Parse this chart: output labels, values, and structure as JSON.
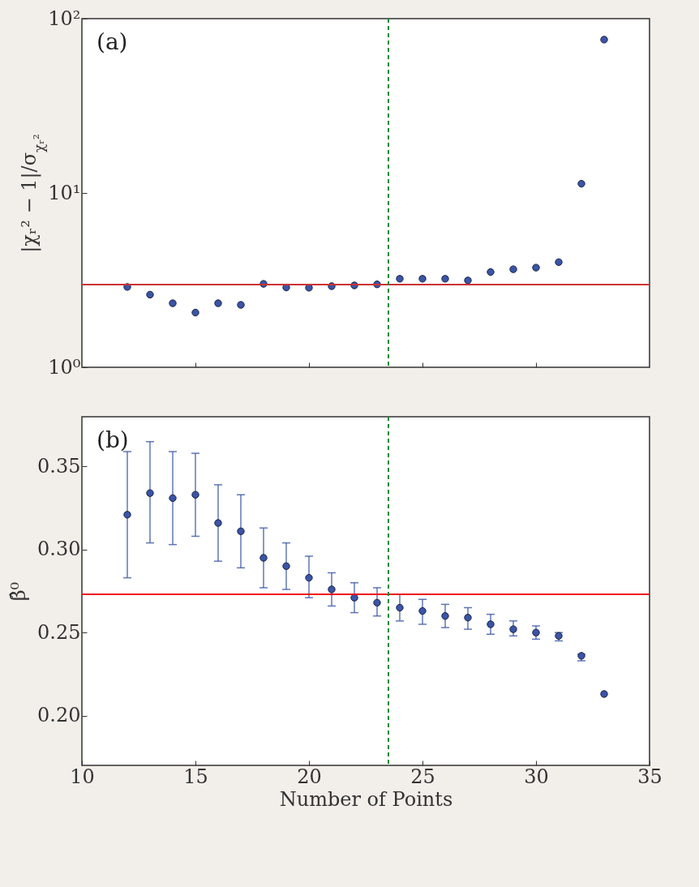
{
  "chart_data": [
    {
      "type": "scatter",
      "ylabel": "|χᵣ² − 1|/σ$_{χᵣ²}$",
      "x": [
        12,
        13,
        14,
        15,
        16,
        17,
        18,
        19,
        20,
        21,
        22,
        23,
        24,
        25,
        26,
        27,
        28,
        29,
        30,
        31,
        32,
        33
      ],
      "series": [
        {
          "color": "#3a55a8",
          "values": [
            2.89,
            2.61,
            2.33,
            2.06,
            2.33,
            2.28,
            3.01,
            2.87,
            2.86,
            2.92,
            2.95,
            2.99,
            3.22,
            3.22,
            3.22,
            3.15,
            3.52,
            3.65,
            3.73,
            4.01,
            11.3,
            75.8
          ]
        }
      ],
      "log": "y",
      "xlim": [
        10,
        35
      ],
      "xticks": [
        15,
        20,
        25,
        30
      ],
      "ylim": [
        1,
        100
      ],
      "yticks": [
        {
          "value": 1,
          "label": "10⁰"
        },
        {
          "value": 10,
          "label": "10¹"
        },
        {
          "value": 100,
          "label": "10²"
        }
      ],
      "tick_labels": "y",
      "marker": "circle",
      "ref_lines": [
        {
          "axis": "y",
          "value": 2.98,
          "color": "#cc3333"
        },
        {
          "axis": "x",
          "value": 23.5,
          "color": "#1a8a3a",
          "line_style": "dashed"
        }
      ],
      "annotations": [
        "(a)"
      ]
    },
    {
      "type": "scatter",
      "xlabel": "Number of Points",
      "ylabel": "β̂⁰",
      "x": [
        12,
        13,
        14,
        15,
        16,
        17,
        18,
        19,
        20,
        21,
        22,
        23,
        24,
        25,
        26,
        27,
        28,
        29,
        30,
        31,
        32,
        33
      ],
      "series": [
        {
          "color": "#3a55a8",
          "values": [
            0.321,
            0.334,
            0.331,
            0.333,
            0.316,
            0.311,
            0.295,
            0.29,
            0.283,
            0.276,
            0.271,
            0.268,
            0.265,
            0.263,
            0.26,
            0.259,
            0.255,
            0.252,
            0.25,
            0.248,
            0.236,
            0.213
          ],
          "errors": [
            [
              0.283,
              0.359
            ],
            [
              0.304,
              0.365
            ],
            [
              0.303,
              0.359
            ],
            [
              0.308,
              0.358
            ],
            [
              0.293,
              0.339
            ],
            [
              0.289,
              0.333
            ],
            [
              0.277,
              0.313
            ],
            [
              0.276,
              0.304
            ],
            [
              0.271,
              0.296
            ],
            [
              0.266,
              0.286
            ],
            [
              0.262,
              0.28
            ],
            [
              0.26,
              0.277
            ],
            [
              0.257,
              0.273
            ],
            [
              0.255,
              0.27
            ],
            [
              0.253,
              0.267
            ],
            [
              0.252,
              0.265
            ],
            [
              0.249,
              0.261
            ],
            [
              0.248,
              0.257
            ],
            [
              0.246,
              0.254
            ],
            [
              0.245,
              0.25
            ],
            [
              0.233,
              0.237
            ],
            null
          ]
        }
      ],
      "xlim": [
        10,
        35
      ],
      "xticks": [
        10,
        15,
        20,
        25,
        30,
        35
      ],
      "ylim": [
        0.17,
        0.38
      ],
      "yticks": [
        {
          "value": 0.2,
          "label": "0.20"
        },
        0.25,
        {
          "value": 0.3,
          "label": "0.30"
        },
        0.35
      ],
      "marker": "circle",
      "ref_lines": [
        {
          "axis": "y",
          "value": 0.273,
          "color": "#ee1111"
        },
        {
          "axis": "x",
          "value": 23.5,
          "color": "#1a8a3a",
          "line_style": "dashed"
        }
      ],
      "annotations": [
        "(b)"
      ]
    }
  ]
}
